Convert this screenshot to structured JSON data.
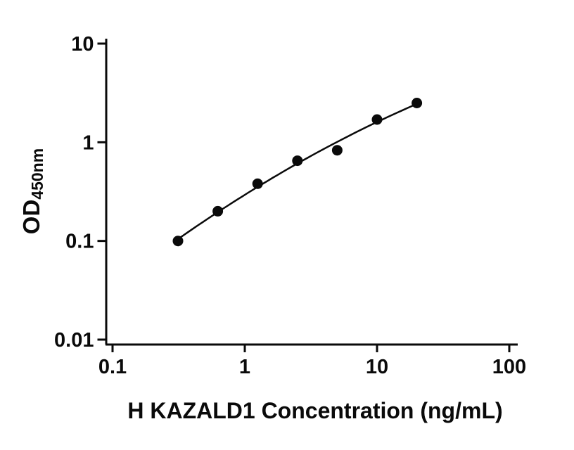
{
  "figure": {
    "background": "#ffffff"
  },
  "chart_data": {
    "type": "scatter",
    "xlabel": "H KAZALD1 Concentration (ng/mL)",
    "ylabel_main": "OD",
    "ylabel_sub": "450nm",
    "x_scale": "log",
    "y_scale": "log",
    "xlim": [
      0.1,
      100
    ],
    "ylim": [
      0.01,
      10
    ],
    "x_ticks": [
      0.1,
      1,
      10,
      100
    ],
    "x_tick_labels": [
      "0.1",
      "1",
      "10",
      "100"
    ],
    "y_ticks": [
      10,
      1,
      0.1,
      0.01
    ],
    "y_tick_labels": [
      "10",
      "1",
      "0.1",
      "0.01"
    ],
    "points": [
      {
        "x": 0.3125,
        "y": 0.1
      },
      {
        "x": 0.625,
        "y": 0.2
      },
      {
        "x": 1.25,
        "y": 0.38
      },
      {
        "x": 2.5,
        "y": 0.65
      },
      {
        "x": 5,
        "y": 0.83
      },
      {
        "x": 10,
        "y": 1.7
      },
      {
        "x": 20,
        "y": 2.5
      }
    ],
    "fit": "smooth standard-curve fit through points (log-log)",
    "grid": false,
    "legend": false,
    "marker": {
      "shape": "circle",
      "color": "#0a0a0a"
    },
    "line_color": "#0a0a0a",
    "axis_color": "#0a0a0a"
  }
}
